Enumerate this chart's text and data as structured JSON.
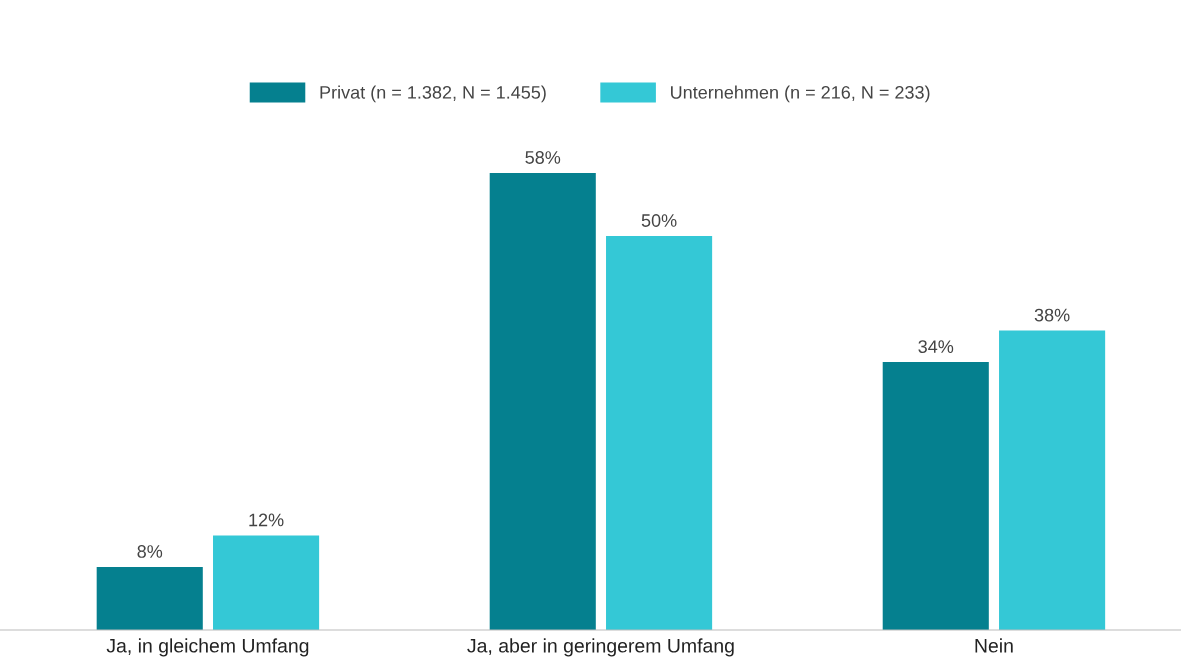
{
  "chart_data": {
    "type": "bar",
    "categories": [
      "Ja, in gleichem Umfang",
      "Ja, aber in geringerem Umfang",
      "Nein"
    ],
    "series": [
      {
        "name": "Privat (n = 1.382, N = 1.455)",
        "color": "#05808f",
        "values": [
          8,
          58,
          34
        ],
        "value_labels": [
          "8%",
          "58%",
          "34%"
        ]
      },
      {
        "name": "Unternehmen (n = 216, N = 233)",
        "color": "#34c8d6",
        "values": [
          12,
          50,
          38
        ],
        "value_labels": [
          "12%",
          "50%",
          "38%"
        ]
      }
    ],
    "legend": "top",
    "grid": false
  }
}
